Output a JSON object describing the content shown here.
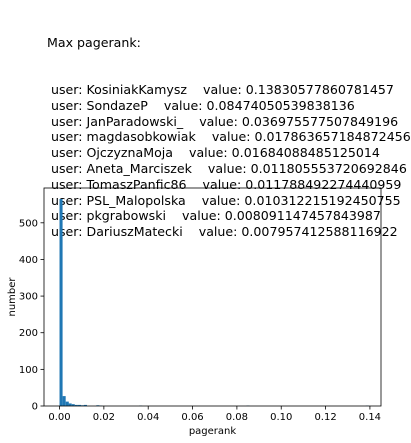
{
  "output": {
    "header": "Max pagerank:",
    "rows": [
      {
        "user": "KosiniakKamysz",
        "value": "0.13830577860781457"
      },
      {
        "user": "SondazeP",
        "value": "0.08474050539838136"
      },
      {
        "user": "JanParadowski_",
        "value": "0.036975577507849196"
      },
      {
        "user": "magdasobkowiak",
        "value": "0.017863657184872456"
      },
      {
        "user": "OjczyznaMoja",
        "value": "0.01684088485125014"
      },
      {
        "user": "Aneta_Marciszek",
        "value": "0.011805553720692846"
      },
      {
        "user": "TomaszPanfic86",
        "value": "0.011788492274440959"
      },
      {
        "user": "PSL_Malopolska",
        "value": "0.010312215192450755"
      },
      {
        "user": "pkgrabowski",
        "value": "0.008091147457843987"
      },
      {
        "user": "DariuszMatecki",
        "value": "0.007957412588116922"
      }
    ]
  },
  "colors": {
    "bar": "#1f77b4"
  },
  "chart_data": {
    "type": "bar",
    "title": "",
    "xlabel": "pagerank",
    "ylabel": "number",
    "xlim": [
      -0.007,
      0.145
    ],
    "ylim": [
      0,
      595
    ],
    "bin_width": 0.00138,
    "x_ticks": [
      "0.00",
      "0.02",
      "0.04",
      "0.06",
      "0.08",
      "0.10",
      "0.12",
      "0.14"
    ],
    "y_ticks": [
      "0",
      "100",
      "200",
      "300",
      "400",
      "500"
    ],
    "bins": [
      {
        "x": 0.0,
        "count": 565
      },
      {
        "x": 0.0014,
        "count": 27
      },
      {
        "x": 0.0028,
        "count": 12
      },
      {
        "x": 0.0041,
        "count": 7
      },
      {
        "x": 0.0055,
        "count": 5
      },
      {
        "x": 0.0069,
        "count": 3
      },
      {
        "x": 0.0083,
        "count": 3
      },
      {
        "x": 0.0097,
        "count": 2
      },
      {
        "x": 0.011,
        "count": 3
      },
      {
        "x": 0.0166,
        "count": 2
      },
      {
        "x": 0.0179,
        "count": 1
      },
      {
        "x": 0.0359,
        "count": 1
      },
      {
        "x": 0.0843,
        "count": 1
      },
      {
        "x": 0.1381,
        "count": 1
      }
    ]
  }
}
